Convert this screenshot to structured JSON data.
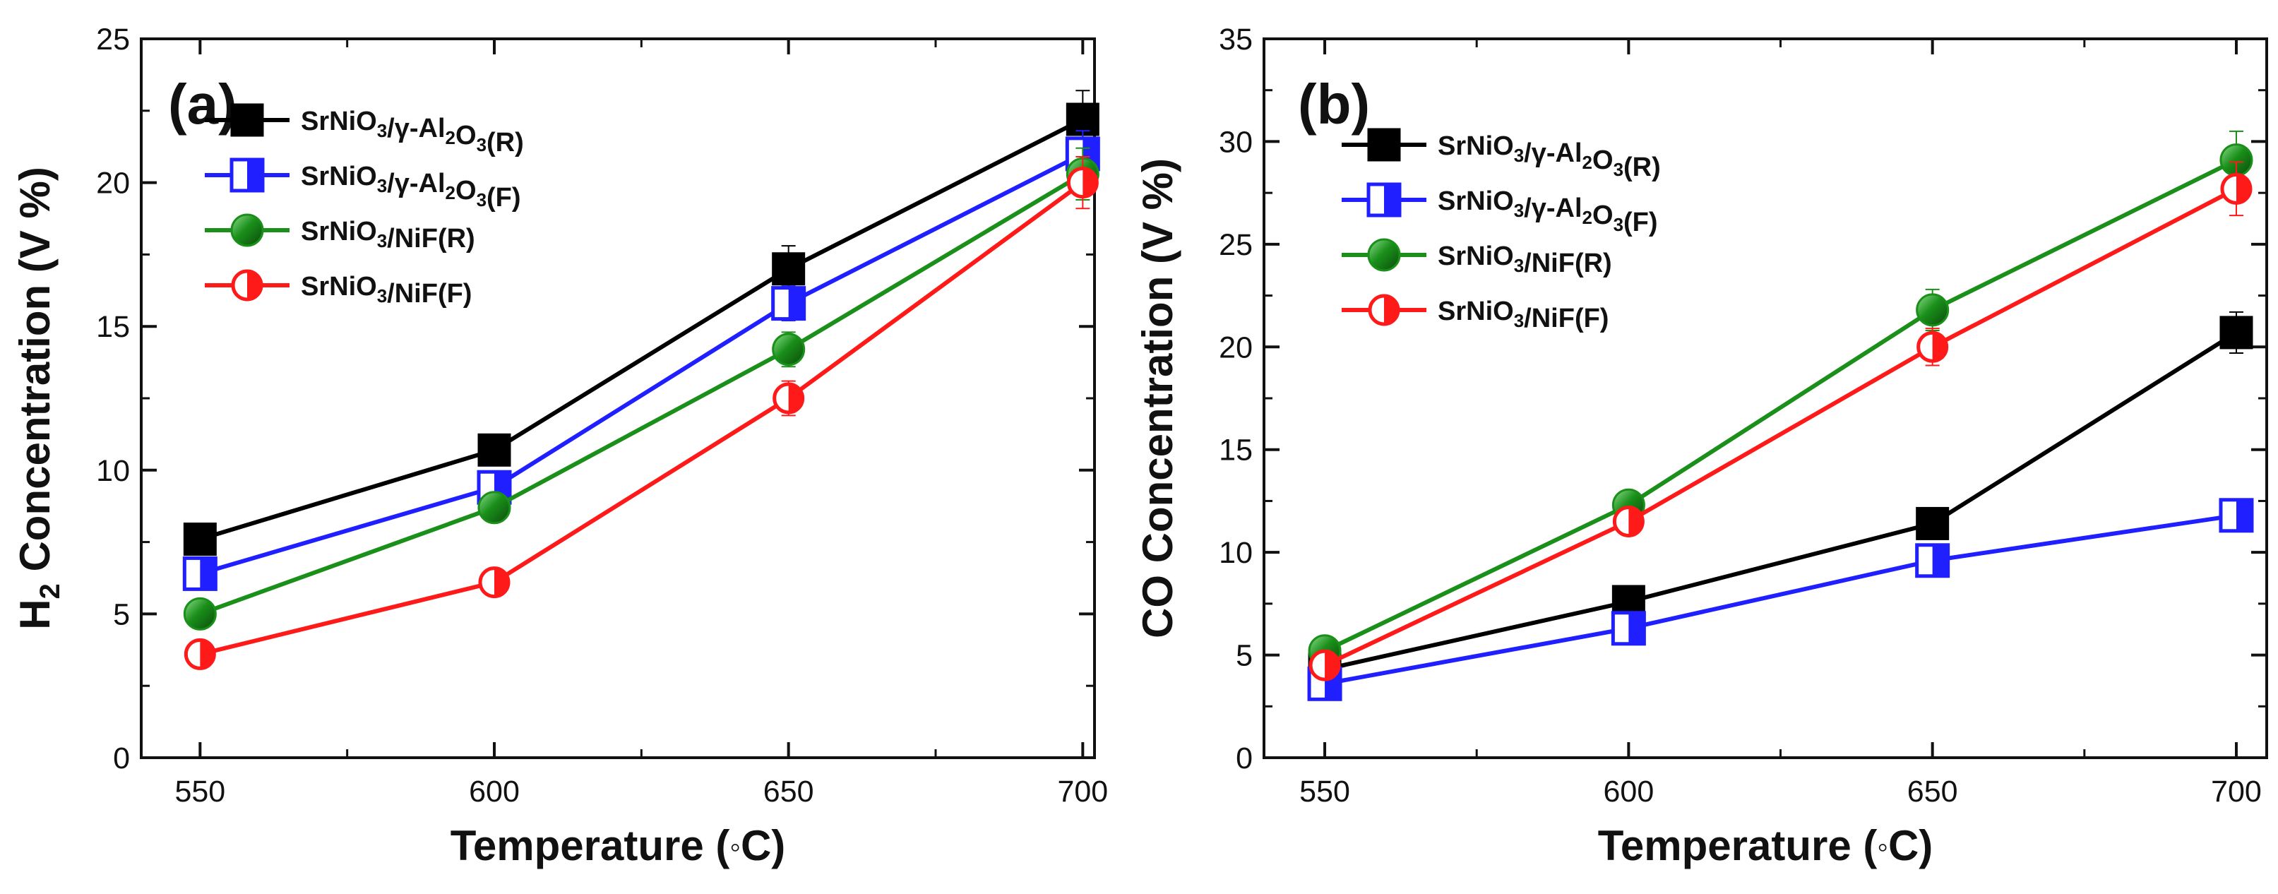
{
  "chart_data": [
    {
      "type": "line",
      "panel_label": "(a)",
      "x": [
        550,
        600,
        650,
        700
      ],
      "xlim": [
        540,
        702
      ],
      "xticks": [
        550,
        600,
        650,
        700
      ],
      "ylim": [
        0,
        25
      ],
      "yticks": [
        0,
        5,
        10,
        15,
        20,
        25
      ],
      "xlabel_main": "Temperature (",
      "xlabel_sym": "◦",
      "xlabel_end": "C)",
      "ylabel_pre": "H",
      "ylabel_sub": "2",
      "ylabel_post": " Concentration (V %)",
      "legend_position": "top-left",
      "series": [
        {
          "name": "SrNiO3/γ-Al2O3(R)",
          "label_parts": [
            "SrNiO",
            "3",
            "/γ-Al",
            "2",
            "O",
            "3",
            "(R)"
          ],
          "color": "#000000",
          "marker": "square-filled",
          "values": [
            7.6,
            10.7,
            17.0,
            22.2
          ],
          "errors": [
            0.2,
            0.4,
            0.8,
            1.0
          ]
        },
        {
          "name": "SrNiO3/γ-Al2O3(F)",
          "label_parts": [
            "SrNiO",
            "3",
            "/γ-Al",
            "2",
            "O",
            "3",
            "(F)"
          ],
          "color": "#1f1fff",
          "marker": "square-half",
          "values": [
            6.4,
            9.4,
            15.8,
            21.0
          ],
          "errors": [
            0.2,
            0.3,
            0.6,
            0.8
          ]
        },
        {
          "name": "SrNiO3/NiF(R)",
          "label_parts": [
            "SrNiO",
            "3",
            "/NiF(R)"
          ],
          "color": "#1a8f1a",
          "marker": "circle-filled",
          "values": [
            5.0,
            8.7,
            14.2,
            20.3
          ],
          "errors": [
            0.2,
            0.3,
            0.6,
            0.9
          ]
        },
        {
          "name": "SrNiO3/NiF(F)",
          "label_parts": [
            "SrNiO",
            "3",
            "/NiF(F)"
          ],
          "color": "#ff1a1a",
          "marker": "circle-half",
          "values": [
            3.6,
            6.1,
            12.5,
            20.0
          ],
          "errors": [
            0.2,
            0.3,
            0.6,
            0.9
          ]
        }
      ]
    },
    {
      "type": "line",
      "panel_label": "(b)",
      "x": [
        550,
        600,
        650,
        700
      ],
      "xlim": [
        540,
        705
      ],
      "xticks": [
        550,
        600,
        650,
        700
      ],
      "ylim": [
        0,
        35
      ],
      "yticks": [
        0,
        5,
        10,
        15,
        20,
        25,
        30,
        35
      ],
      "xlabel_main": "Temperature (",
      "xlabel_sym": "◦",
      "xlabel_end": "C)",
      "ylabel_pre": "CO Concentration (V %)",
      "ylabel_sub": "",
      "ylabel_post": "",
      "legend_position": "top-left",
      "series": [
        {
          "name": "SrNiO3/γ-Al2O3(R)",
          "label_parts": [
            "SrNiO",
            "3",
            "/γ-Al",
            "2",
            "O",
            "3",
            "(R)"
          ],
          "color": "#000000",
          "marker": "square-filled",
          "values": [
            4.3,
            7.6,
            11.4,
            20.7
          ],
          "errors": [
            0.2,
            0.3,
            0.4,
            1.0
          ]
        },
        {
          "name": "SrNiO3/γ-Al2O3(F)",
          "label_parts": [
            "SrNiO",
            "3",
            "/γ-Al",
            "2",
            "O",
            "3",
            "(F)"
          ],
          "color": "#1f1fff",
          "marker": "square-half",
          "values": [
            3.6,
            6.3,
            9.6,
            11.8
          ],
          "errors": [
            0.2,
            0.3,
            0.4,
            0.5
          ]
        },
        {
          "name": "SrNiO3/NiF(R)",
          "label_parts": [
            "SrNiO",
            "3",
            "/NiF(R)"
          ],
          "color": "#1a8f1a",
          "marker": "circle-filled",
          "values": [
            5.2,
            12.3,
            21.8,
            29.1
          ],
          "errors": [
            0.3,
            0.4,
            1.0,
            1.4
          ]
        },
        {
          "name": "SrNiO3/NiF(F)",
          "label_parts": [
            "SrNiO",
            "3",
            "/NiF(F)"
          ],
          "color": "#ff1a1a",
          "marker": "circle-half",
          "values": [
            4.5,
            11.5,
            20.0,
            27.7
          ],
          "errors": [
            0.3,
            0.4,
            0.9,
            1.3
          ]
        }
      ]
    }
  ]
}
